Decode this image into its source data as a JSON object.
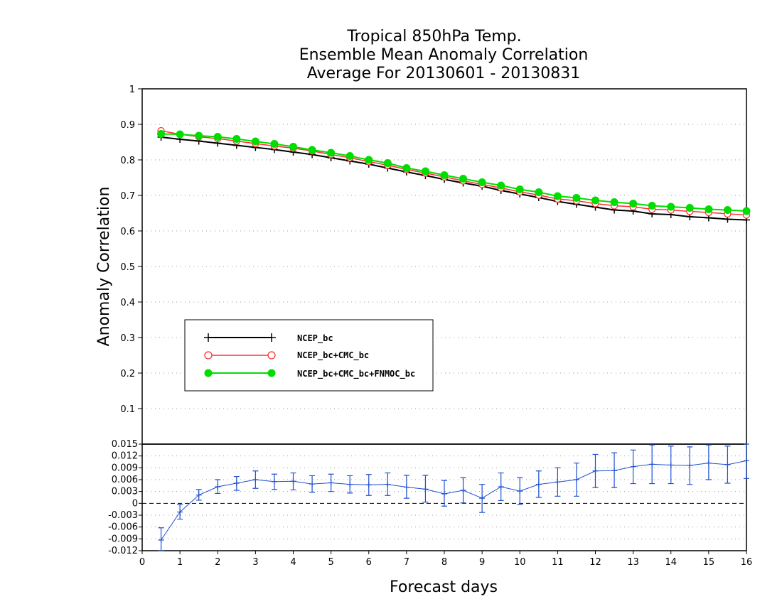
{
  "chart_data": [
    {
      "type": "line",
      "title": [
        "Tropical 850hPa Temp.",
        "Ensemble Mean Anomaly Correlation",
        "Average For 20130601 - 20130831"
      ],
      "ylabel": "Anomaly Correlation",
      "ylim": [
        0,
        1
      ],
      "yticks": [
        "0.1",
        "0.2",
        "0.3",
        "0.4",
        "0.5",
        "0.6",
        "0.7",
        "0.8",
        "0.9",
        "1"
      ],
      "xlim": [
        0,
        16
      ],
      "grid": true,
      "legend_position": "lower-left",
      "x": [
        0.5,
        1,
        1.5,
        2,
        2.5,
        3,
        3.5,
        4,
        4.5,
        5,
        5.5,
        6,
        6.5,
        7,
        7.5,
        8,
        8.5,
        9,
        9.5,
        10,
        10.5,
        11,
        11.5,
        12,
        12.5,
        13,
        13.5,
        14,
        14.5,
        15,
        15.5,
        16
      ],
      "series": [
        {
          "name": "NCEP_bc",
          "color": "#000000",
          "marker": "plus",
          "values": [
            0.864,
            0.858,
            0.853,
            0.847,
            0.841,
            0.835,
            0.829,
            0.822,
            0.815,
            0.806,
            0.797,
            0.788,
            0.777,
            0.766,
            0.756,
            0.745,
            0.735,
            0.726,
            0.714,
            0.704,
            0.694,
            0.683,
            0.675,
            0.667,
            0.659,
            0.656,
            0.648,
            0.646,
            0.64,
            0.637,
            0.633,
            0.631
          ]
        },
        {
          "name": "NCEP_bc+CMC_bc",
          "color": "#ff3030",
          "marker": "open-circle",
          "values": [
            0.882,
            0.872,
            0.865,
            0.86,
            0.853,
            0.846,
            0.839,
            0.833,
            0.825,
            0.815,
            0.806,
            0.795,
            0.785,
            0.773,
            0.763,
            0.752,
            0.741,
            0.731,
            0.721,
            0.71,
            0.701,
            0.69,
            0.685,
            0.677,
            0.671,
            0.668,
            0.661,
            0.659,
            0.655,
            0.652,
            0.648,
            0.645
          ]
        },
        {
          "name": "NCEP_bc+CMC_bc+FNMOC_bc",
          "color": "#00dd00",
          "marker": "filled-circle",
          "values": [
            0.873,
            0.872,
            0.868,
            0.865,
            0.859,
            0.852,
            0.845,
            0.837,
            0.828,
            0.82,
            0.811,
            0.8,
            0.791,
            0.777,
            0.768,
            0.757,
            0.747,
            0.737,
            0.728,
            0.717,
            0.709,
            0.698,
            0.693,
            0.686,
            0.681,
            0.677,
            0.671,
            0.668,
            0.665,
            0.661,
            0.659,
            0.656
          ]
        }
      ]
    },
    {
      "type": "line",
      "xlabel": "Forecast days",
      "xlim": [
        0,
        16
      ],
      "xticks": [
        "0",
        "1",
        "2",
        "3",
        "4",
        "5",
        "6",
        "7",
        "8",
        "9",
        "10",
        "11",
        "12",
        "13",
        "14",
        "15",
        "16"
      ],
      "ylim": [
        -0.012,
        0.015
      ],
      "yticks": [
        "-0.012",
        "-0.009",
        "-0.006",
        "-0.003",
        "0",
        "0.003",
        "0.006",
        "0.009",
        "0.012",
        "0.015"
      ],
      "grid": true,
      "zero_line": true,
      "series": [
        {
          "color": "#2050d0",
          "marker": "plus",
          "error_bars": true,
          "x": [
            0.5,
            1,
            1.5,
            2,
            2.5,
            3,
            3.5,
            4,
            4.5,
            5,
            5.5,
            6,
            6.5,
            7,
            7.5,
            8,
            8.5,
            9,
            9.5,
            10,
            10.5,
            11,
            11.5,
            12,
            12.5,
            13,
            13.5,
            14,
            14.5,
            15,
            15.5,
            16
          ],
          "values": [
            -0.0093,
            -0.0022,
            0.0021,
            0.0042,
            0.0051,
            0.006,
            0.0055,
            0.0056,
            0.0049,
            0.0052,
            0.0048,
            0.0047,
            0.0048,
            0.0041,
            0.0036,
            0.0024,
            0.0033,
            0.0013,
            0.0042,
            0.0031,
            0.0048,
            0.0054,
            0.006,
            0.0082,
            0.0083,
            0.0093,
            0.0099,
            0.0097,
            0.0096,
            0.0102,
            0.0098,
            0.0108
          ],
          "lower": [
            -0.012,
            -0.004,
            0.0008,
            0.0025,
            0.0033,
            0.0038,
            0.0035,
            0.0034,
            0.0028,
            0.003,
            0.0026,
            0.002,
            0.002,
            0.0013,
            0.0003,
            -0.0007,
            0.0001,
            -0.0023,
            0.0007,
            -0.0003,
            0.0015,
            0.0018,
            0.0018,
            0.004,
            0.004,
            0.005,
            0.005,
            0.005,
            0.0048,
            0.006,
            0.0051,
            0.0063
          ],
          "upper": [
            -0.0062,
            -0.0003,
            0.0035,
            0.006,
            0.0068,
            0.0082,
            0.0074,
            0.0077,
            0.007,
            0.0074,
            0.007,
            0.0073,
            0.0077,
            0.0071,
            0.0071,
            0.0058,
            0.0065,
            0.0048,
            0.0077,
            0.0065,
            0.0082,
            0.009,
            0.0102,
            0.0124,
            0.0128,
            0.0135,
            0.0148,
            0.0145,
            0.0143,
            0.0148,
            0.0145,
            0.0155
          ]
        }
      ]
    }
  ]
}
